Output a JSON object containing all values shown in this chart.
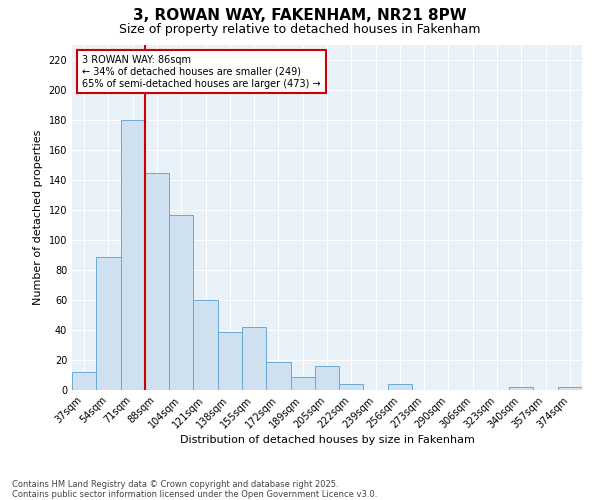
{
  "title": "3, ROWAN WAY, FAKENHAM, NR21 8PW",
  "subtitle": "Size of property relative to detached houses in Fakenham",
  "xlabel": "Distribution of detached houses by size in Fakenham",
  "ylabel": "Number of detached properties",
  "categories": [
    "37sqm",
    "54sqm",
    "71sqm",
    "88sqm",
    "104sqm",
    "121sqm",
    "138sqm",
    "155sqm",
    "172sqm",
    "189sqm",
    "205sqm",
    "222sqm",
    "239sqm",
    "256sqm",
    "273sqm",
    "290sqm",
    "306sqm",
    "323sqm",
    "340sqm",
    "357sqm",
    "374sqm"
  ],
  "values": [
    12,
    89,
    180,
    145,
    117,
    60,
    39,
    42,
    19,
    9,
    16,
    4,
    0,
    4,
    0,
    0,
    0,
    0,
    2,
    0,
    2
  ],
  "bar_color": "#cfe0f0",
  "bar_edge_color": "#6aaad4",
  "fig_background_color": "#ffffff",
  "ax_background_color": "#e8f0f8",
  "grid_color": "#ffffff",
  "vline_x_index": 2.5,
  "vline_color": "#cc0000",
  "annotation_text": "3 ROWAN WAY: 86sqm\n← 34% of detached houses are smaller (249)\n65% of semi-detached houses are larger (473) →",
  "annotation_box_facecolor": "#ffffff",
  "annotation_box_edgecolor": "#cc0000",
  "ylim": [
    0,
    230
  ],
  "yticks": [
    0,
    20,
    40,
    60,
    80,
    100,
    120,
    140,
    160,
    180,
    200,
    220
  ],
  "footnote": "Contains HM Land Registry data © Crown copyright and database right 2025.\nContains public sector information licensed under the Open Government Licence v3.0.",
  "title_fontsize": 11,
  "subtitle_fontsize": 9,
  "ylabel_fontsize": 8,
  "xlabel_fontsize": 8,
  "tick_fontsize": 7,
  "annotation_fontsize": 7,
  "footnote_fontsize": 6
}
